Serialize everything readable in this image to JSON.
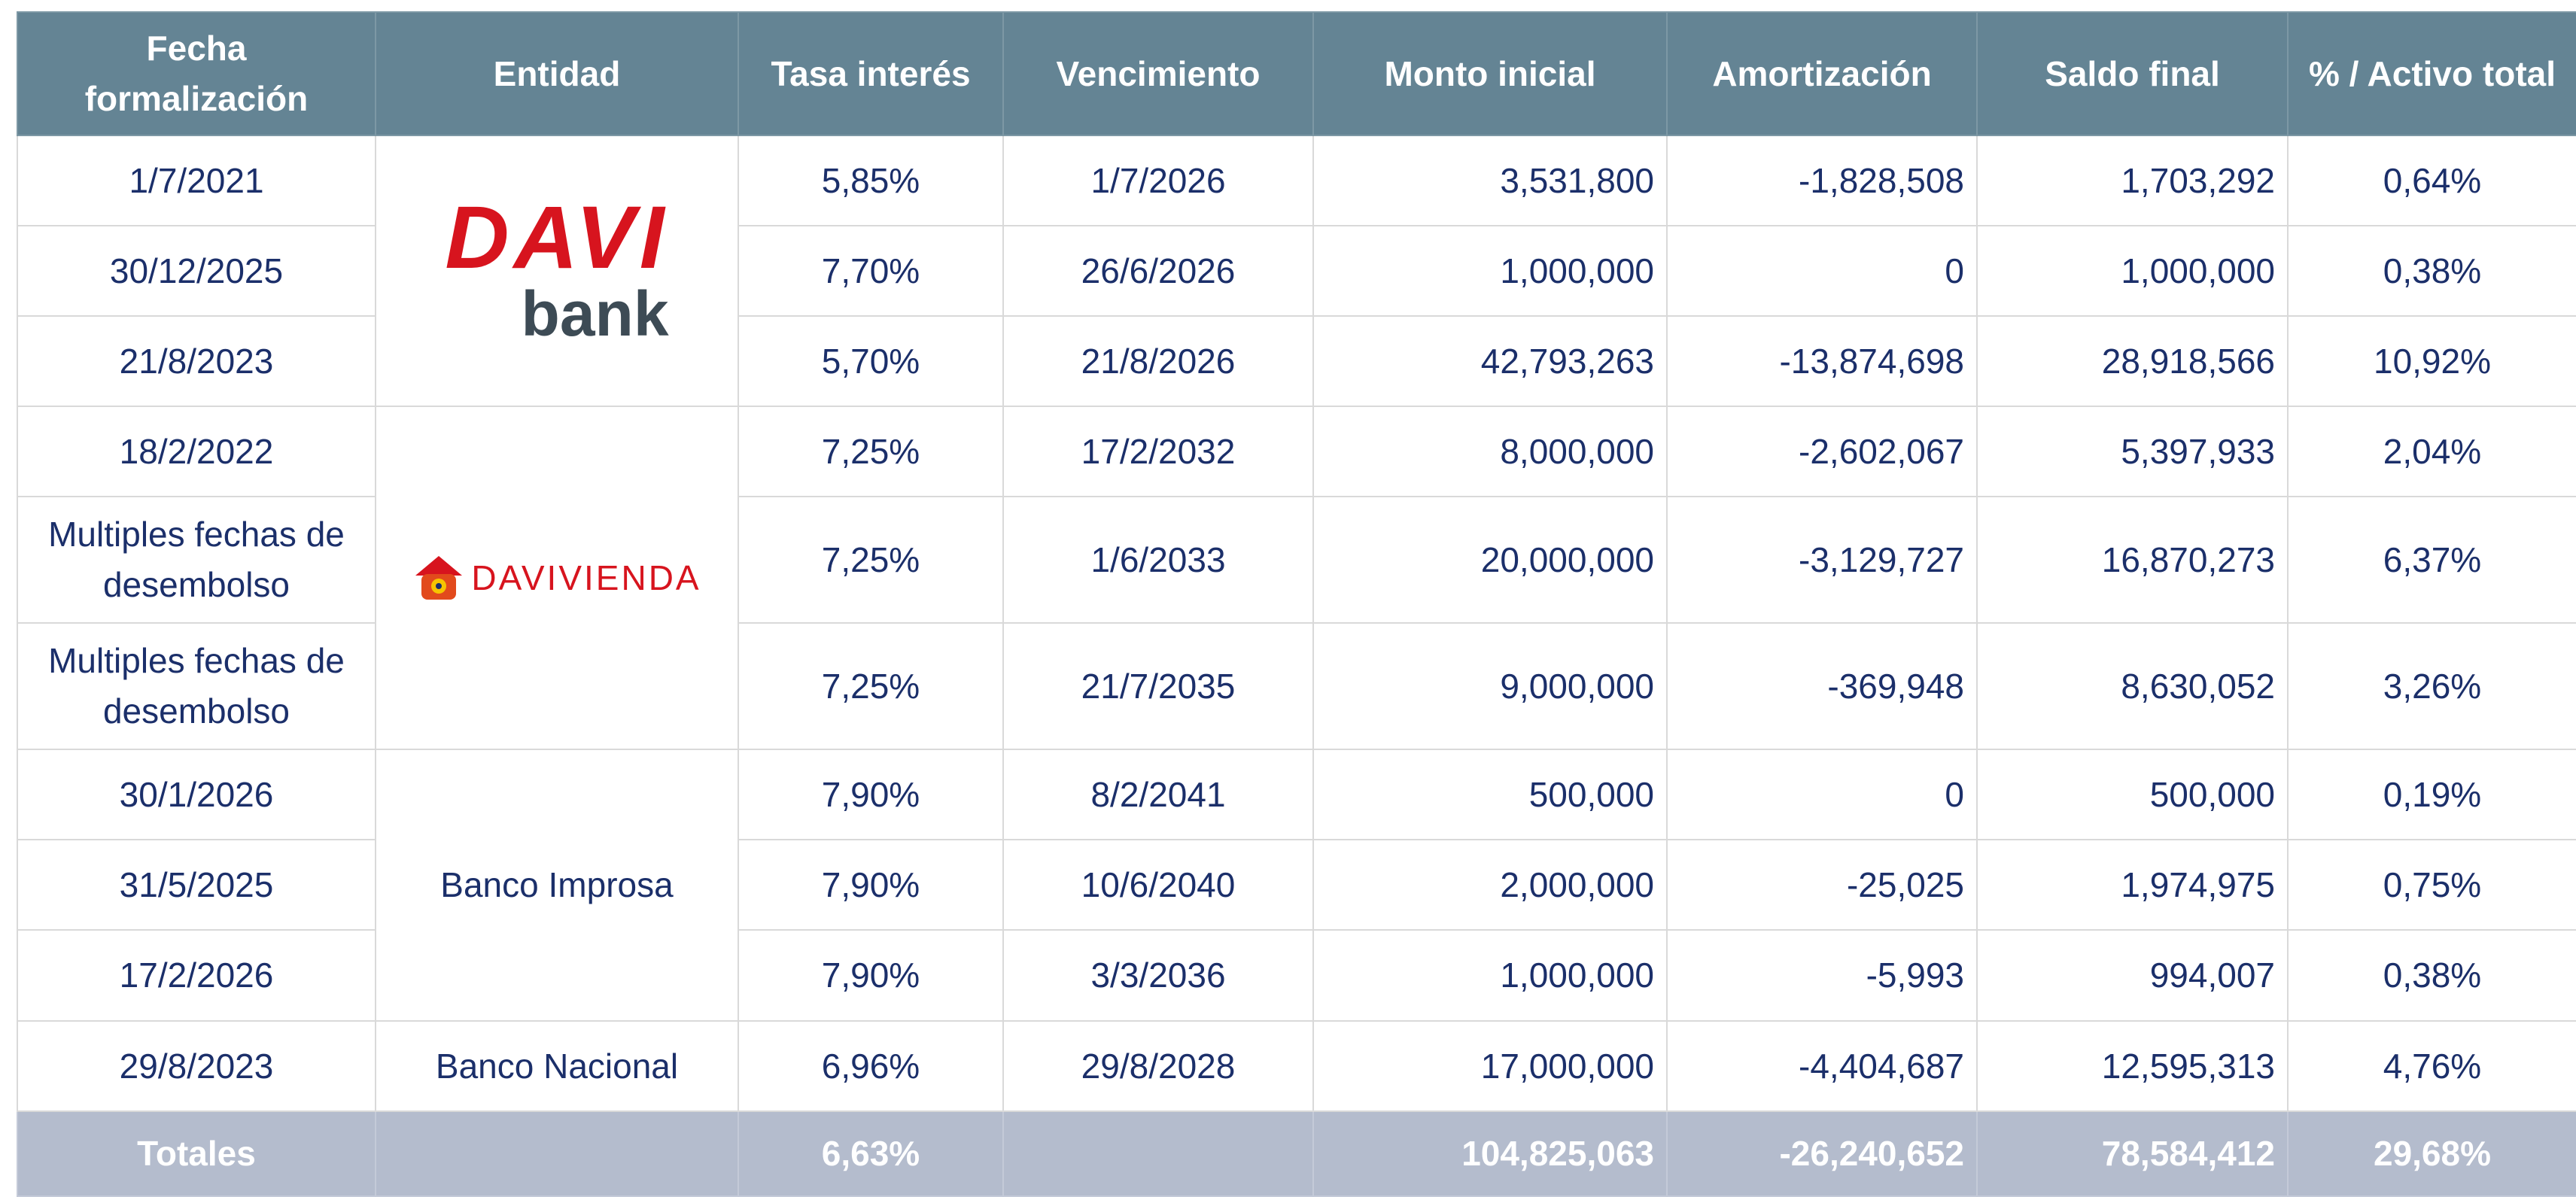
{
  "table": {
    "header": [
      "Fecha formalización",
      "Entidad",
      "Tasa interés",
      "Vencimiento",
      "Monto inicial",
      "Amortización",
      "Saldo final",
      "% / Activo total"
    ],
    "groups": [
      {
        "entity": {
          "logo": [
            "DAVI",
            "bank"
          ]
        },
        "rows": [
          [
            "1/7/2021",
            "5,85%",
            "1/7/2026",
            "3,531,800",
            "-1,828,508",
            "1,703,292",
            "0,64%"
          ],
          [
            "30/12/2025",
            "7,70%",
            "26/6/2026",
            "1,000,000",
            "0",
            "1,000,000",
            "0,38%"
          ],
          [
            "21/8/2023",
            "5,70%",
            "21/8/2026",
            "42,793,263",
            "-13,874,698",
            "28,918,566",
            "10,92%"
          ]
        ]
      },
      {
        "entity": {
          "logo": [
            "DAVIVIENDA"
          ]
        },
        "rows": [
          [
            "18/2/2022",
            "7,25%",
            "17/2/2032",
            "8,000,000",
            "-2,602,067",
            "5,397,933",
            "2,04%"
          ],
          [
            "Multiples fechas de desembolso",
            "7,25%",
            "1/6/2033",
            "20,000,000",
            "-3,129,727",
            "16,870,273",
            "6,37%"
          ],
          [
            "Multiples fechas de desembolso",
            "7,25%",
            "21/7/2035",
            "9,000,000",
            "-369,948",
            "8,630,052",
            "3,26%"
          ]
        ]
      },
      {
        "entity": {
          "name": "Banco Improsa"
        },
        "rows": [
          [
            "30/1/2026",
            "7,90%",
            "8/2/2041",
            "500,000",
            "0",
            "500,000",
            "0,19%"
          ],
          [
            "31/5/2025",
            "7,90%",
            "10/6/2040",
            "2,000,000",
            "-25,025",
            "1,974,975",
            "0,75%"
          ],
          [
            "17/2/2026",
            "7,90%",
            "3/3/2036",
            "1,000,000",
            "-5,993",
            "994,007",
            "0,38%"
          ]
        ]
      },
      {
        "entity": {
          "name": "Banco Nacional"
        },
        "rows": [
          [
            "29/8/2023",
            "6,96%",
            "29/8/2028",
            "17,000,000",
            "-4,404,687",
            "12,595,313",
            "4,76%"
          ]
        ]
      }
    ],
    "totals": {
      "label": "Totales",
      "tasa": "6,63%",
      "monto": "104,825,063",
      "amortizacion": "-26,240,652",
      "saldo": "78,584,412",
      "pct": "29,68%"
    }
  }
}
